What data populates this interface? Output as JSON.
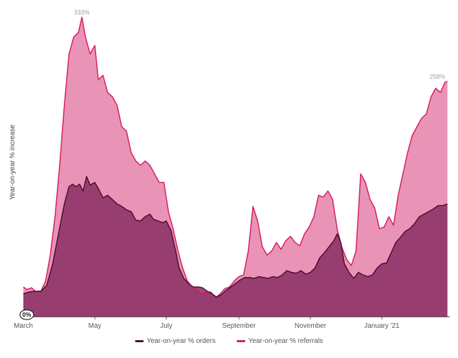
{
  "chart_data": {
    "type": "area",
    "title": "",
    "xlabel": "",
    "ylabel": "Year-on-year % increase",
    "x_axis": {
      "start": "2020-03-01",
      "end": "2021-02-28",
      "ticks": [
        {
          "date": "2020-03-01",
          "label": "March"
        },
        {
          "date": "2020-05-01",
          "label": "May"
        },
        {
          "date": "2020-07-01",
          "label": "July"
        },
        {
          "date": "2020-09-01",
          "label": "September"
        },
        {
          "date": "2020-11-01",
          "label": "November"
        },
        {
          "date": "2021-01-01",
          "label": "January '21"
        }
      ]
    },
    "ylim": [
      0,
      345
    ],
    "zero_label": "0%",
    "annotations": [
      {
        "series": "referrals",
        "date": "2020-04-20",
        "value": 333,
        "text": "333%"
      },
      {
        "series": "referrals",
        "date": "2021-02-26",
        "value": 258,
        "text": "258%"
      }
    ],
    "legend_position": "bottom-center",
    "colors": {
      "orders_line": "#4a0d33",
      "orders_fill": "#8a2e63",
      "referrals_line": "#d81b60",
      "referrals_fill": "#e993b6"
    },
    "series": [
      {
        "key": "orders",
        "name": "Year-on-year % orders",
        "points": [
          [
            "2020-03-01",
            10
          ],
          [
            "2020-03-06",
            12
          ],
          [
            "2020-03-11",
            13
          ],
          [
            "2020-03-16",
            13
          ],
          [
            "2020-03-21",
            20
          ],
          [
            "2020-03-26",
            45
          ],
          [
            "2020-03-31",
            80
          ],
          [
            "2020-04-05",
            115
          ],
          [
            "2020-04-09",
            135
          ],
          [
            "2020-04-12",
            138
          ],
          [
            "2020-04-15",
            135
          ],
          [
            "2020-04-18",
            138
          ],
          [
            "2020-04-21",
            130
          ],
          [
            "2020-04-24",
            147
          ],
          [
            "2020-04-27",
            137
          ],
          [
            "2020-05-01",
            140
          ],
          [
            "2020-05-04",
            133
          ],
          [
            "2020-05-08",
            122
          ],
          [
            "2020-05-12",
            125
          ],
          [
            "2020-05-16",
            120
          ],
          [
            "2020-05-20",
            115
          ],
          [
            "2020-05-24",
            112
          ],
          [
            "2020-05-28",
            108
          ],
          [
            "2020-06-01",
            106
          ],
          [
            "2020-06-05",
            96
          ],
          [
            "2020-06-09",
            95
          ],
          [
            "2020-06-13",
            100
          ],
          [
            "2020-06-17",
            103
          ],
          [
            "2020-06-20",
            97
          ],
          [
            "2020-06-24",
            95
          ],
          [
            "2020-06-28",
            93
          ],
          [
            "2020-07-01",
            95
          ],
          [
            "2020-07-05",
            84
          ],
          [
            "2020-07-09",
            60
          ],
          [
            "2020-07-12",
            40
          ],
          [
            "2020-07-16",
            28
          ],
          [
            "2020-07-20",
            22
          ],
          [
            "2020-07-24",
            18
          ],
          [
            "2020-07-28",
            18
          ],
          [
            "2020-08-01",
            17
          ],
          [
            "2020-08-05",
            13
          ],
          [
            "2020-08-09",
            10
          ],
          [
            "2020-08-13",
            6
          ],
          [
            "2020-08-17",
            9
          ],
          [
            "2020-08-21",
            14
          ],
          [
            "2020-08-25",
            18
          ],
          [
            "2020-08-29",
            22
          ],
          [
            "2020-09-02",
            26
          ],
          [
            "2020-09-06",
            29
          ],
          [
            "2020-09-10",
            29
          ],
          [
            "2020-09-14",
            28
          ],
          [
            "2020-09-18",
            30
          ],
          [
            "2020-09-22",
            29
          ],
          [
            "2020-09-26",
            28
          ],
          [
            "2020-09-30",
            30
          ],
          [
            "2020-10-04",
            29
          ],
          [
            "2020-10-08",
            32
          ],
          [
            "2020-10-12",
            37
          ],
          [
            "2020-10-16",
            35
          ],
          [
            "2020-10-20",
            34
          ],
          [
            "2020-10-24",
            37
          ],
          [
            "2020-10-28",
            33
          ],
          [
            "2020-11-01",
            35
          ],
          [
            "2020-11-05",
            40
          ],
          [
            "2020-11-09",
            52
          ],
          [
            "2020-11-13",
            58
          ],
          [
            "2020-11-17",
            65
          ],
          [
            "2020-11-21",
            72
          ],
          [
            "2020-11-24",
            80
          ],
          [
            "2020-11-27",
            70
          ],
          [
            "2020-11-30",
            45
          ],
          [
            "2020-12-04",
            35
          ],
          [
            "2020-12-08",
            28
          ],
          [
            "2020-12-12",
            35
          ],
          [
            "2020-12-16",
            32
          ],
          [
            "2020-12-20",
            30
          ],
          [
            "2020-12-24",
            32
          ],
          [
            "2020-12-28",
            40
          ],
          [
            "2021-01-01",
            45
          ],
          [
            "2021-01-05",
            46
          ],
          [
            "2021-01-09",
            58
          ],
          [
            "2021-01-13",
            70
          ],
          [
            "2021-01-17",
            76
          ],
          [
            "2021-01-21",
            83
          ],
          [
            "2021-01-25",
            86
          ],
          [
            "2021-01-29",
            92
          ],
          [
            "2021-02-02",
            100
          ],
          [
            "2021-02-06",
            103
          ],
          [
            "2021-02-10",
            106
          ],
          [
            "2021-02-14",
            109
          ],
          [
            "2021-02-18",
            113
          ],
          [
            "2021-02-22",
            113
          ],
          [
            "2021-02-26",
            115
          ]
        ]
      },
      {
        "key": "referrals",
        "name": "Year-on-year % referrals",
        "points": [
          [
            "2020-03-01",
            18
          ],
          [
            "2020-03-04",
            15
          ],
          [
            "2020-03-08",
            17
          ],
          [
            "2020-03-12",
            12
          ],
          [
            "2020-03-16",
            13
          ],
          [
            "2020-03-20",
            25
          ],
          [
            "2020-03-24",
            55
          ],
          [
            "2020-03-28",
            100
          ],
          [
            "2020-04-01",
            160
          ],
          [
            "2020-04-05",
            230
          ],
          [
            "2020-04-09",
            290
          ],
          [
            "2020-04-13",
            310
          ],
          [
            "2020-04-17",
            315
          ],
          [
            "2020-04-20",
            333
          ],
          [
            "2020-04-23",
            310
          ],
          [
            "2020-04-27",
            290
          ],
          [
            "2020-05-01",
            300
          ],
          [
            "2020-05-04",
            260
          ],
          [
            "2020-05-08",
            265
          ],
          [
            "2020-05-12",
            245
          ],
          [
            "2020-05-16",
            240
          ],
          [
            "2020-05-20",
            230
          ],
          [
            "2020-05-24",
            205
          ],
          [
            "2020-05-28",
            200
          ],
          [
            "2020-06-01",
            175
          ],
          [
            "2020-06-05",
            165
          ],
          [
            "2020-06-09",
            160
          ],
          [
            "2020-06-13",
            165
          ],
          [
            "2020-06-17",
            160
          ],
          [
            "2020-06-21",
            150
          ],
          [
            "2020-06-25",
            140
          ],
          [
            "2020-06-29",
            140
          ],
          [
            "2020-07-03",
            105
          ],
          [
            "2020-07-07",
            85
          ],
          [
            "2020-07-11",
            60
          ],
          [
            "2020-07-15",
            40
          ],
          [
            "2020-07-19",
            25
          ],
          [
            "2020-07-23",
            18
          ],
          [
            "2020-07-27",
            15
          ],
          [
            "2020-07-31",
            10
          ],
          [
            "2020-08-04",
            12
          ],
          [
            "2020-08-08",
            12
          ],
          [
            "2020-08-12",
            5
          ],
          [
            "2020-08-16",
            10
          ],
          [
            "2020-08-20",
            16
          ],
          [
            "2020-08-24",
            18
          ],
          [
            "2020-08-28",
            25
          ],
          [
            "2020-09-01",
            30
          ],
          [
            "2020-09-05",
            32
          ],
          [
            "2020-09-09",
            60
          ],
          [
            "2020-09-13",
            112
          ],
          [
            "2020-09-17",
            95
          ],
          [
            "2020-09-21",
            65
          ],
          [
            "2020-09-25",
            55
          ],
          [
            "2020-09-29",
            60
          ],
          [
            "2020-10-03",
            70
          ],
          [
            "2020-10-07",
            62
          ],
          [
            "2020-10-11",
            72
          ],
          [
            "2020-10-15",
            77
          ],
          [
            "2020-10-19",
            70
          ],
          [
            "2020-10-23",
            66
          ],
          [
            "2020-10-27",
            80
          ],
          [
            "2020-10-31",
            88
          ],
          [
            "2020-11-04",
            100
          ],
          [
            "2020-11-08",
            125
          ],
          [
            "2020-11-12",
            123
          ],
          [
            "2020-11-16",
            130
          ],
          [
            "2020-11-20",
            120
          ],
          [
            "2020-11-24",
            85
          ],
          [
            "2020-11-28",
            64
          ],
          [
            "2020-12-02",
            50
          ],
          [
            "2020-12-06",
            43
          ],
          [
            "2020-12-10",
            60
          ],
          [
            "2020-12-14",
            150
          ],
          [
            "2020-12-18",
            140
          ],
          [
            "2020-12-22",
            120
          ],
          [
            "2020-12-26",
            110
          ],
          [
            "2020-12-30",
            86
          ],
          [
            "2021-01-03",
            88
          ],
          [
            "2021-01-07",
            100
          ],
          [
            "2021-01-11",
            90
          ],
          [
            "2021-01-15",
            125
          ],
          [
            "2021-01-19",
            150
          ],
          [
            "2021-01-23",
            175
          ],
          [
            "2021-01-27",
            195
          ],
          [
            "2021-01-31",
            205
          ],
          [
            "2021-02-04",
            215
          ],
          [
            "2021-02-08",
            220
          ],
          [
            "2021-02-12",
            240
          ],
          [
            "2021-02-16",
            250
          ],
          [
            "2021-02-20",
            245
          ],
          [
            "2021-02-24",
            257
          ],
          [
            "2021-02-26",
            258
          ]
        ]
      }
    ]
  }
}
